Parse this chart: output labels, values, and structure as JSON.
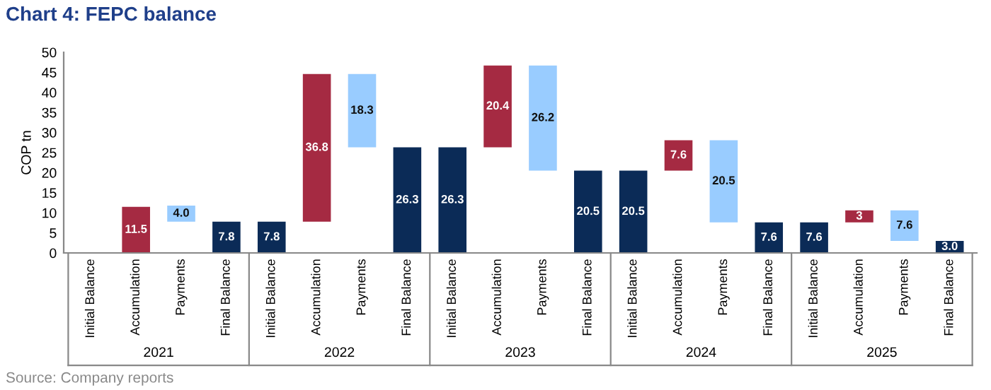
{
  "chart_data": {
    "type": "bar",
    "title": "Chart 4: FEPC balance",
    "ylabel": "COP tn",
    "categories": [
      "Initial Balance",
      "Accumulation",
      "Payments",
      "Final Balance",
      "Initial Balance",
      "Accumulation",
      "Payments",
      "Final Balance",
      "Initial Balance",
      "Accumulation",
      "Payments",
      "Final Balance",
      "Initial Balance",
      "Accumulation",
      "Payments",
      "Final Balance",
      "Initial Balance",
      "Accumulation",
      "Payments",
      "Final Balance"
    ],
    "values": [
      null,
      11.5,
      4.0,
      7.8,
      7.8,
      36.8,
      18.3,
      26.3,
      26.3,
      20.4,
      26.2,
      20.5,
      20.5,
      7.6,
      20.5,
      7.6,
      7.6,
      3,
      7.6,
      3.0
    ],
    "base": [
      null,
      0,
      7.8,
      0,
      0,
      7.8,
      26.3,
      0,
      0,
      26.3,
      20.5,
      0,
      0,
      20.5,
      7.6,
      0,
      0,
      7.6,
      3.0,
      0
    ],
    "colors": [
      "#0b2b57",
      "#a52a42",
      "#99ccff",
      "#0b2b57",
      "#0b2b57",
      "#a52a42",
      "#99ccff",
      "#0b2b57",
      "#0b2b57",
      "#a52a42",
      "#99ccff",
      "#0b2b57",
      "#0b2b57",
      "#a52a42",
      "#99ccff",
      "#0b2b57",
      "#0b2b57",
      "#a52a42",
      "#99ccff",
      "#0b2b57"
    ],
    "value_labels": [
      null,
      "11.5",
      "4.0",
      "7.8",
      "7.8",
      "36.8",
      "18.3",
      "26.3",
      "26.3",
      "20.4",
      "26.2",
      "20.5",
      "20.5",
      "7.6",
      "20.5",
      "7.6",
      "7.6",
      "3",
      "7.6",
      "3.0"
    ],
    "ylim": [
      0,
      50
    ],
    "yticks": [
      0,
      5,
      10,
      15,
      20,
      25,
      30,
      35,
      40,
      45,
      50
    ],
    "grid": false,
    "legend": false,
    "annotations": [
      "2021",
      "2022",
      "2023",
      "2024",
      "2025",
      "Source: Company reports"
    ]
  }
}
